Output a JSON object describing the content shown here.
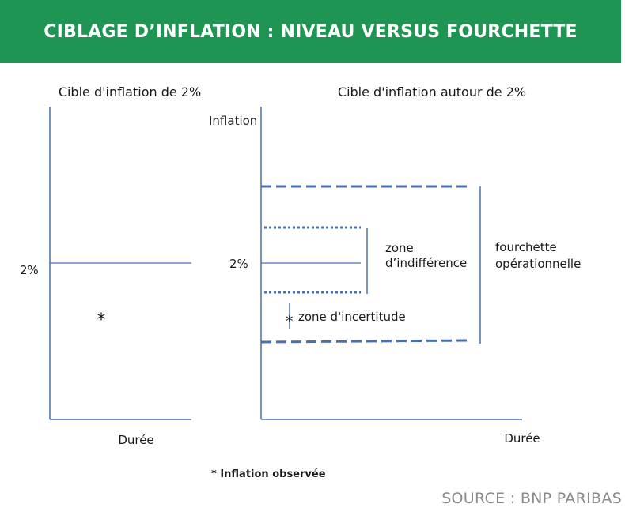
{
  "header": {
    "title": "CIBLAGE D’INFLATION : NIVEAU VERSUS FOURCHETTE"
  },
  "left_panel": {
    "title": "Cible d'inflation de 2%",
    "target_label": "2%",
    "observation_marker": "*",
    "x_axis_label": "Durée"
  },
  "right_panel": {
    "title": "Cible d'inflation autour de 2%",
    "y_axis_label": "Inflation",
    "target_label": "2%",
    "indifference_zone_label": [
      "zone",
      "d’indifférence"
    ],
    "operational_range_label": [
      "fourchette",
      "opérationnelle"
    ],
    "uncertainty_marker": "*",
    "uncertainty_zone_label": "zone d'incertitude",
    "x_axis_label": "Durée"
  },
  "footnote": "* Inflation observée",
  "source": "SOURCE : BNP PARIBAS",
  "colors": {
    "banner": "#1e9553",
    "axis": "#4a6fb0",
    "range": "#4a6fb0",
    "source_text": "#8a8a8a"
  }
}
